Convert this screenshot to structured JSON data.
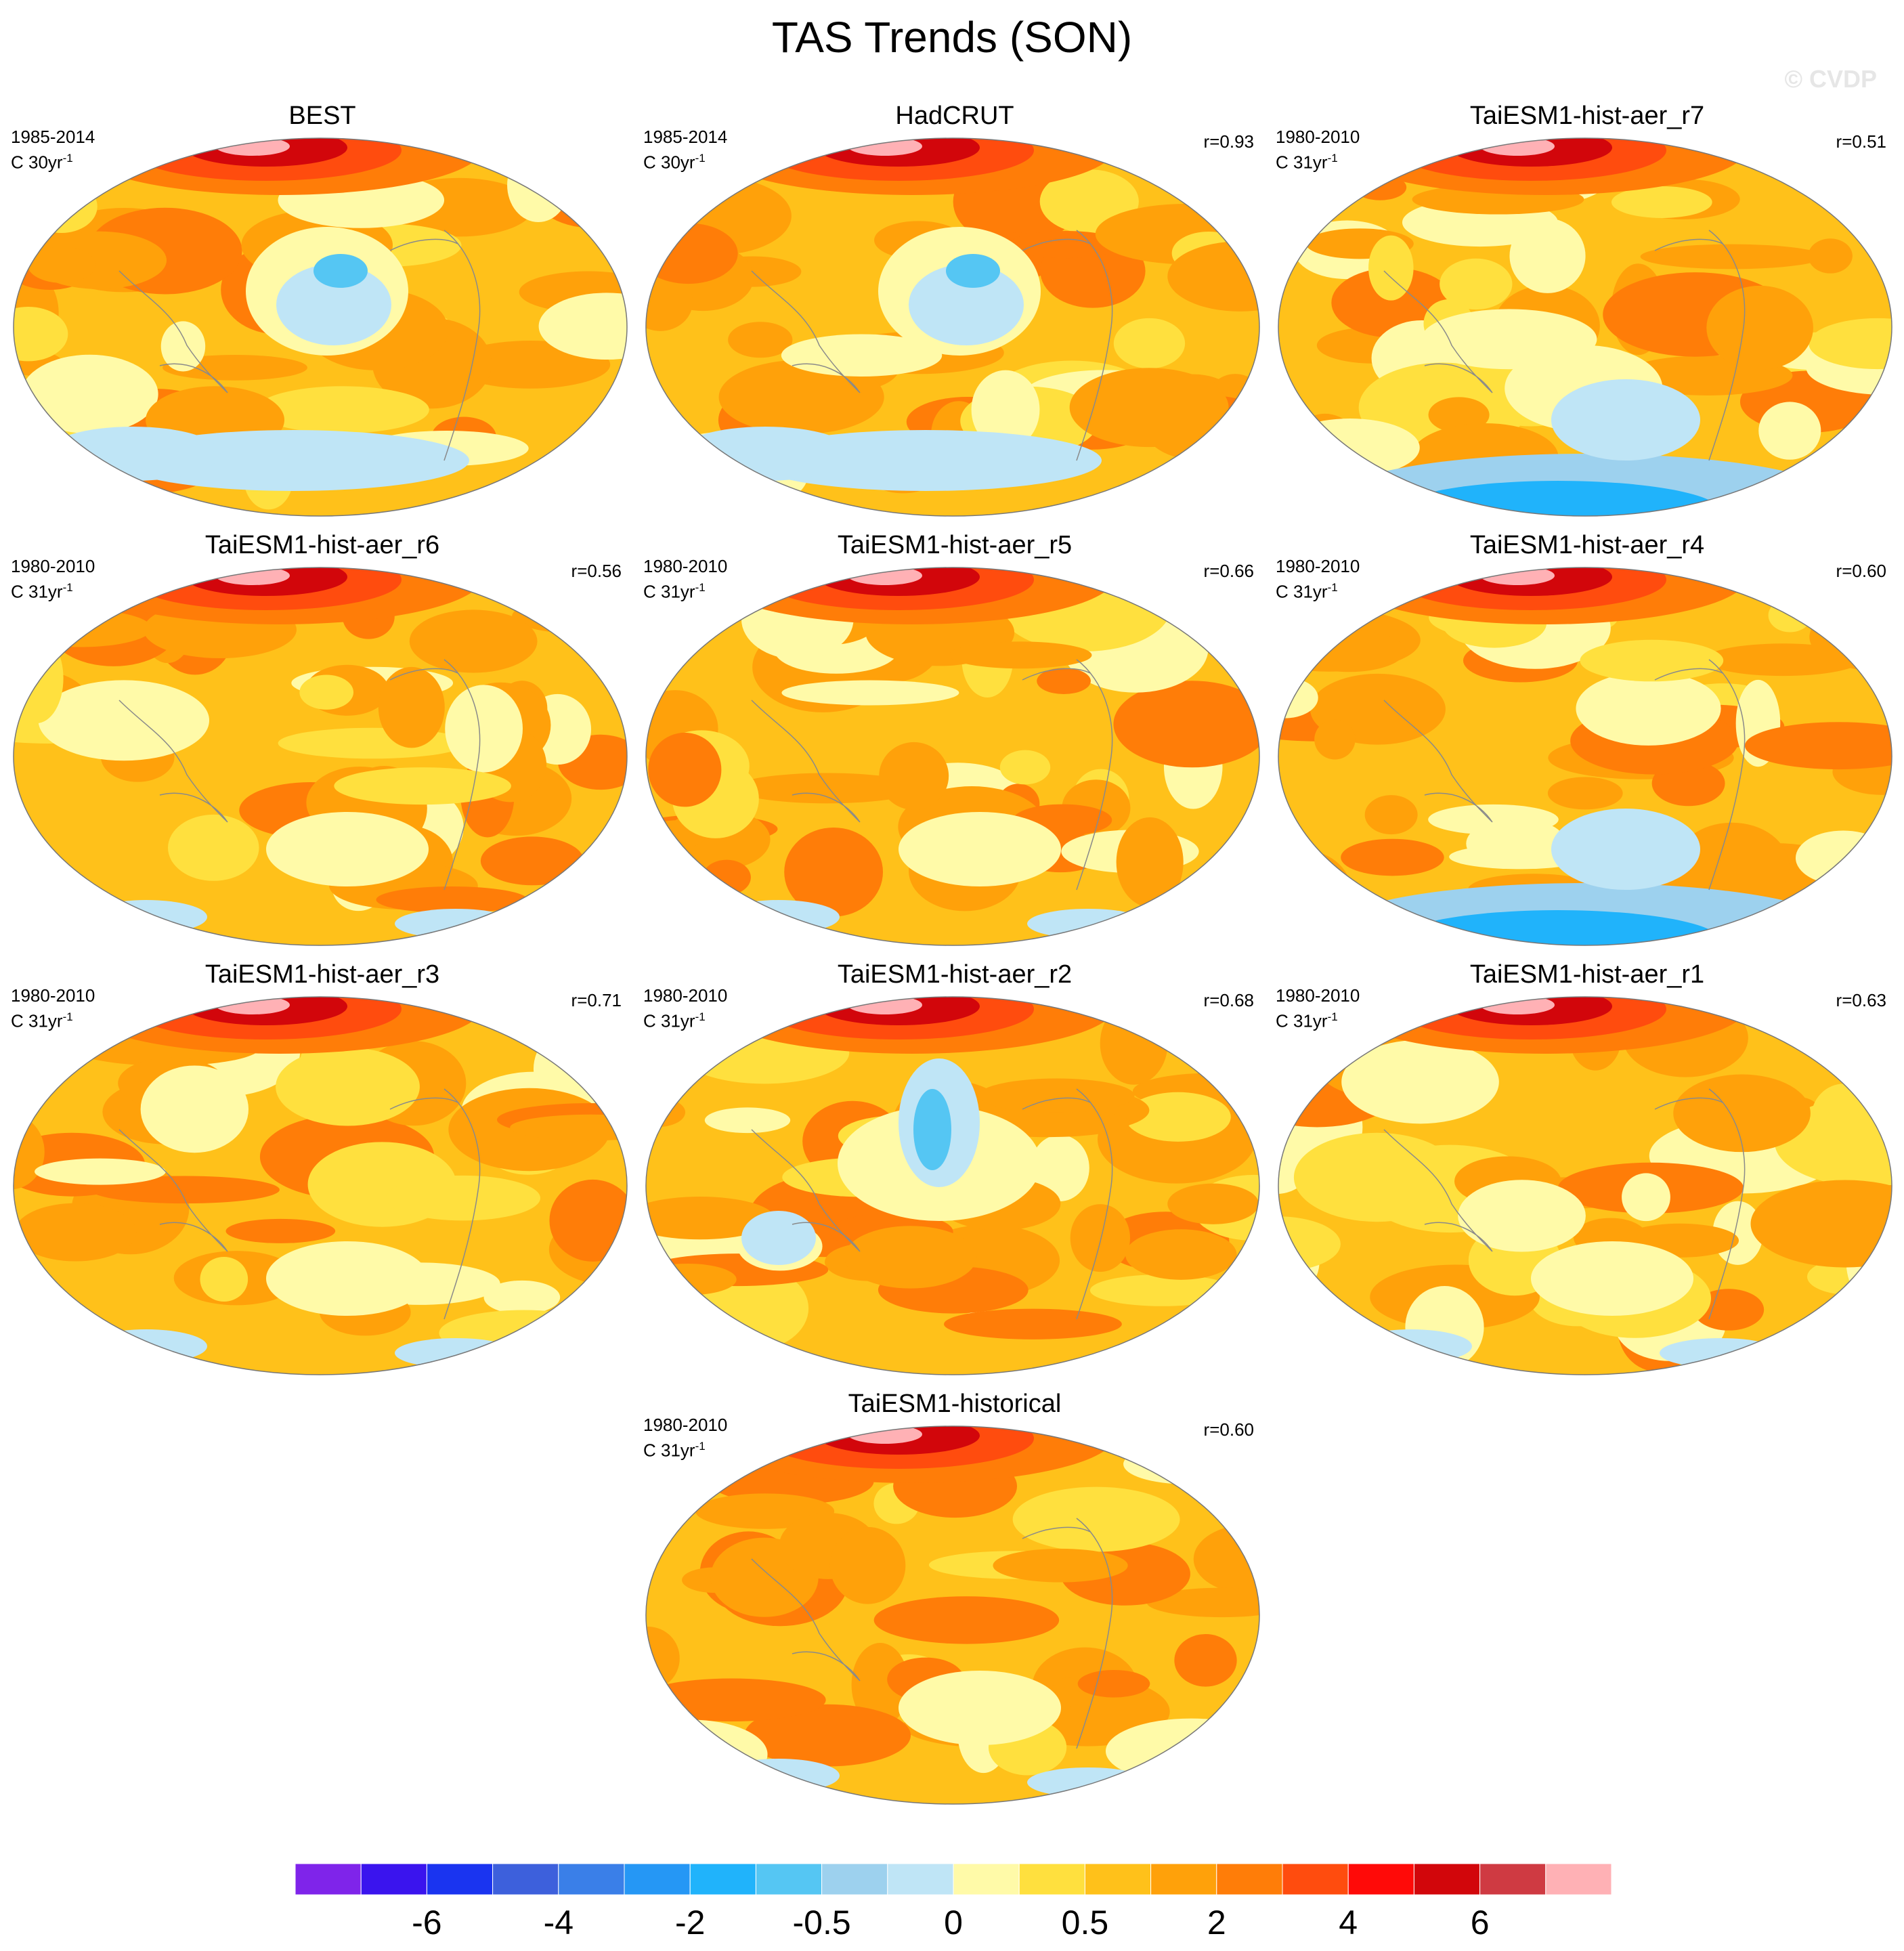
{
  "figure": {
    "title": "TAS Trends (SON)",
    "watermark": "© CVDP"
  },
  "panels": [
    {
      "name": "BEST",
      "period": "1985-2014",
      "units_prefix": "C 30yr",
      "units_exp": "-1",
      "r": "",
      "pattern": "obs",
      "seed": 3
    },
    {
      "name": "HadCRUT",
      "period": "1985-2014",
      "units_prefix": "C 30yr",
      "units_exp": "-1",
      "r": "r=0.93",
      "pattern": "obs",
      "seed": 5
    },
    {
      "name": "TaiESM1-hist-aer_r7",
      "period": "1980-2010",
      "units_prefix": "C 31yr",
      "units_exp": "-1",
      "r": "r=0.51",
      "pattern": "coolsouth",
      "seed": 7
    },
    {
      "name": "TaiESM1-hist-aer_r6",
      "period": "1980-2010",
      "units_prefix": "C 31yr",
      "units_exp": "-1",
      "r": "r=0.56",
      "pattern": "warm",
      "seed": 11
    },
    {
      "name": "TaiESM1-hist-aer_r5",
      "period": "1980-2010",
      "units_prefix": "C 31yr",
      "units_exp": "-1",
      "r": "r=0.66",
      "pattern": "warm",
      "seed": 13
    },
    {
      "name": "TaiESM1-hist-aer_r4",
      "period": "1980-2010",
      "units_prefix": "C 31yr",
      "units_exp": "-1",
      "r": "r=0.60",
      "pattern": "coolsouth",
      "seed": 17
    },
    {
      "name": "TaiESM1-hist-aer_r3",
      "period": "1980-2010",
      "units_prefix": "C 31yr",
      "units_exp": "-1",
      "r": "r=0.71",
      "pattern": "warm",
      "seed": 19
    },
    {
      "name": "TaiESM1-hist-aer_r2",
      "period": "1980-2010",
      "units_prefix": "C 31yr",
      "units_exp": "-1",
      "r": "r=0.68",
      "pattern": "coolpac",
      "seed": 23
    },
    {
      "name": "TaiESM1-hist-aer_r1",
      "period": "1980-2010",
      "units_prefix": "C 31yr",
      "units_exp": "-1",
      "r": "r=0.63",
      "pattern": "warm",
      "seed": 29
    },
    {
      "name": "TaiESM1-historical",
      "period": "1980-2010",
      "units_prefix": "C 31yr",
      "units_exp": "-1",
      "r": "r=0.60",
      "pattern": "warm",
      "seed": 31
    }
  ],
  "colorbar": {
    "colors": [
      "#7f24ea",
      "#3a14ee",
      "#1a34f0",
      "#3d60dc",
      "#3a7fe8",
      "#2597f5",
      "#20b3fb",
      "#55c6f3",
      "#9dd1ee",
      "#bfe5f6",
      "#fffaa8",
      "#ffe03e",
      "#ffc11a",
      "#ffa10a",
      "#ff7d08",
      "#ff4c0e",
      "#ff0a08",
      "#d2060b",
      "#cf3a42",
      "#ffb1b5"
    ],
    "tick_labels": [
      "-6",
      "-4",
      "-2",
      "-0.5",
      "0",
      "0.5",
      "2",
      "4",
      "6"
    ],
    "tick_boundaries": [
      2,
      4,
      6,
      8,
      10,
      12,
      14,
      16,
      18
    ]
  }
}
